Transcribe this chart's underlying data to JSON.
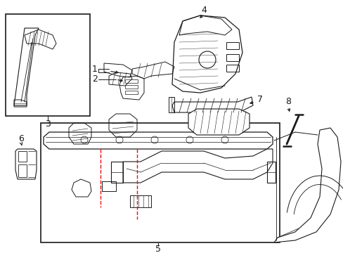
{
  "bg_color": "#ffffff",
  "line_color": "#1a1a1a",
  "red_color": "#ff0000",
  "figsize": [
    4.89,
    3.6
  ],
  "dpi": 100,
  "xlim": [
    0,
    489
  ],
  "ylim": [
    0,
    360
  ]
}
